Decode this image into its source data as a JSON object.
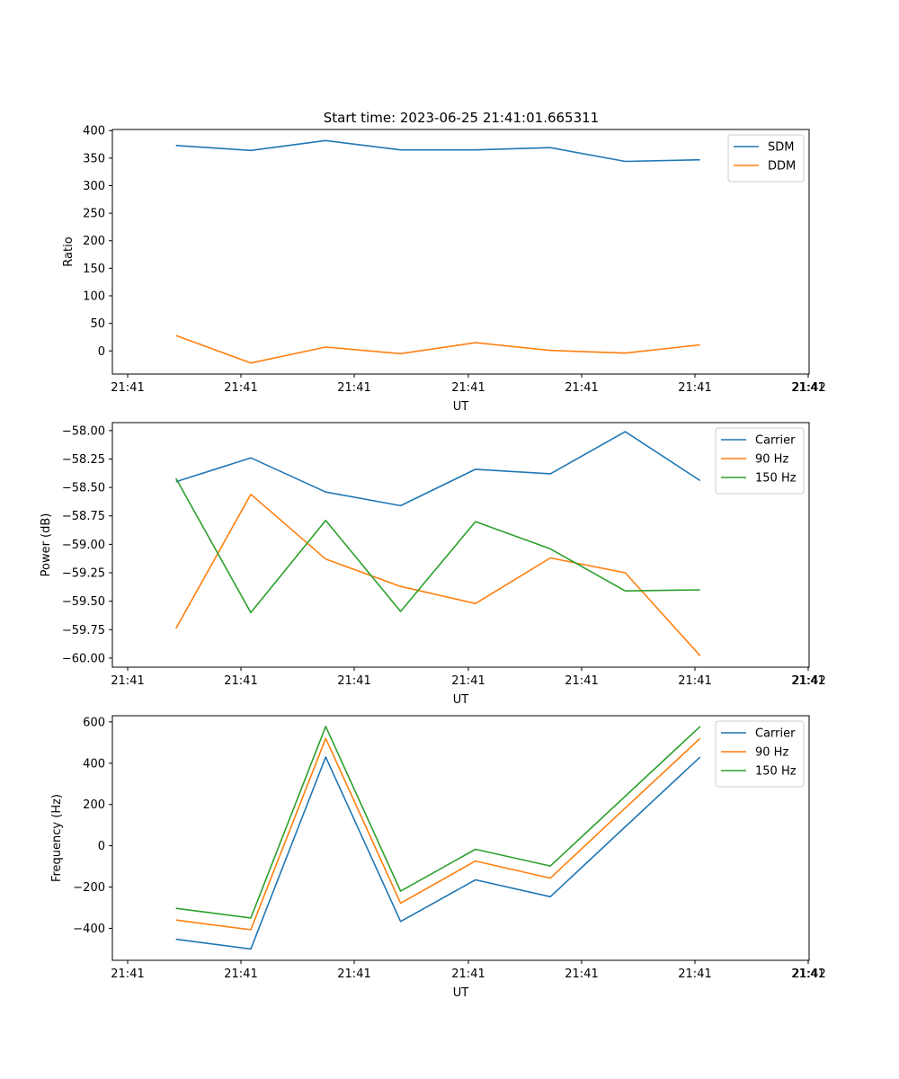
{
  "figure": {
    "title": "Start time: 2023-06-25 21:41:01.665311"
  },
  "chart_data": [
    {
      "type": "line",
      "title": "Start time: 2023-06-25 21:41:01.665311",
      "xlabel": "UT",
      "ylabel": "Ratio",
      "xticklabels": [
        "21:41",
        "21:41",
        "21:41",
        "21:41",
        "21:41",
        "21:41",
        "21:41",
        "21:42"
      ],
      "yticks": [
        0,
        50,
        100,
        150,
        200,
        250,
        300,
        350,
        400
      ],
      "yticklabels": [
        "0",
        "50",
        "100",
        "150",
        "200",
        "250",
        "300",
        "350",
        "400"
      ],
      "ylim": [
        -42,
        402
      ],
      "legend_position": "top-right",
      "x_seconds_from_start": [
        0,
        0.33,
        0.66,
        0.99,
        1.32,
        1.65,
        1.98,
        2.31
      ],
      "series": [
        {
          "name": "SDM",
          "color": "#1f77b4",
          "values": [
            373,
            364,
            382,
            365,
            365,
            369,
            344,
            347
          ]
        },
        {
          "name": "DDM",
          "color": "#ff7f0e",
          "values": [
            28,
            -22,
            7,
            -5,
            15,
            1,
            -4,
            11
          ]
        }
      ]
    },
    {
      "type": "line",
      "xlabel": "UT",
      "ylabel": "Power (dB)",
      "xticklabels": [
        "21:41",
        "21:41",
        "21:41",
        "21:41",
        "21:41",
        "21:41",
        "21:41",
        "21:42"
      ],
      "yticks": [
        -60.0,
        -59.75,
        -59.5,
        -59.25,
        -59.0,
        -58.75,
        -58.5,
        -58.25,
        -58.0
      ],
      "yticklabels": [
        "−60.00",
        "−59.75",
        "−59.50",
        "−59.25",
        "−59.00",
        "−58.75",
        "−58.50",
        "−58.25",
        "−58.00"
      ],
      "ylim": [
        -60.08,
        -57.93
      ],
      "legend_position": "top-right",
      "x_seconds_from_start": [
        0,
        0.33,
        0.66,
        0.99,
        1.32,
        1.65,
        1.98,
        2.31
      ],
      "series": [
        {
          "name": "Carrier",
          "color": "#1f77b4",
          "values": [
            -58.45,
            -58.24,
            -58.54,
            -58.66,
            -58.34,
            -58.38,
            -58.01,
            -58.44
          ]
        },
        {
          "name": "90 Hz",
          "color": "#ff7f0e",
          "values": [
            -59.74,
            -58.56,
            -59.13,
            -59.37,
            -59.52,
            -59.12,
            -59.25,
            -59.98
          ]
        },
        {
          "name": "150 Hz",
          "color": "#2ca02c",
          "values": [
            -58.42,
            -59.6,
            -58.79,
            -59.59,
            -58.8,
            -59.04,
            -59.41,
            -59.4
          ]
        }
      ]
    },
    {
      "type": "line",
      "xlabel": "UT",
      "ylabel": "Frequency (Hz)",
      "xticklabels": [
        "21:41",
        "21:41",
        "21:41",
        "21:41",
        "21:41",
        "21:41",
        "21:41",
        "21:42"
      ],
      "yticks": [
        -400,
        -200,
        0,
        200,
        400,
        600
      ],
      "yticklabels": [
        "−400",
        "−200",
        "0",
        "200",
        "400",
        "600"
      ],
      "ylim": [
        -555,
        630
      ],
      "legend_position": "top-right",
      "x_seconds_from_start": [
        0,
        0.33,
        0.66,
        0.99,
        1.32,
        1.65,
        1.98,
        2.31
      ],
      "series": [
        {
          "name": "Carrier",
          "color": "#1f77b4",
          "values": [
            -453,
            -500,
            430,
            -367,
            -165,
            -247,
            92,
            430
          ]
        },
        {
          "name": "90 Hz",
          "color": "#ff7f0e",
          "values": [
            -360,
            -407,
            520,
            -278,
            -74,
            -157,
            183,
            520
          ]
        },
        {
          "name": "150 Hz",
          "color": "#2ca02c",
          "values": [
            -303,
            -350,
            578,
            -220,
            -17,
            -98,
            240,
            578
          ]
        }
      ]
    }
  ]
}
